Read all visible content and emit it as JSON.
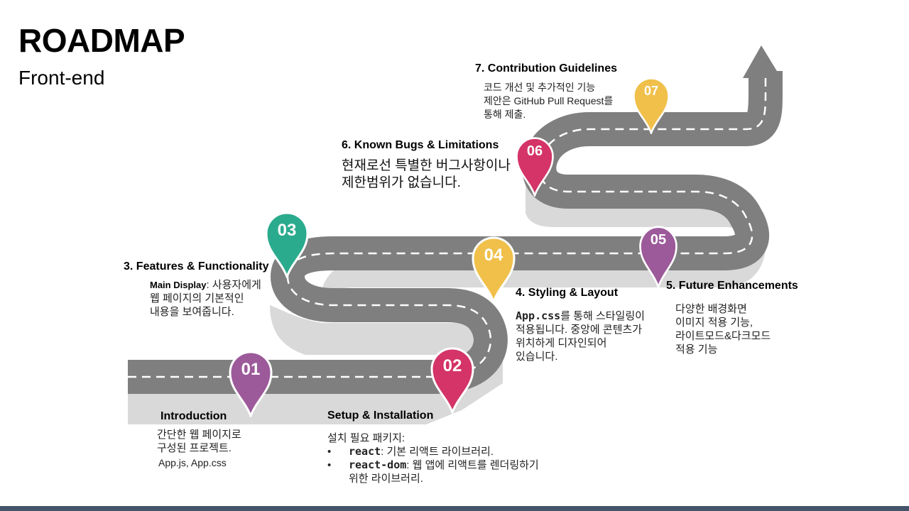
{
  "title": "ROADMAP",
  "subtitle": "Front-end",
  "colors": {
    "purple": "#9c5a9a",
    "pink": "#d43468",
    "teal": "#2bab8e",
    "yellow": "#f0c04a",
    "road": "#7f7f7f",
    "road_shadow": "#d9d9d9",
    "footer": "#44546a"
  },
  "milestones": [
    {
      "num": "01",
      "heading": "Introduction",
      "lines": [
        "간단한 웹 페이지로",
        "구성된 프로젝트."
      ],
      "files": "App.js, App.css"
    },
    {
      "num": "02",
      "heading": "Setup & Installation",
      "intro": "설치 필요 패키지:",
      "packages": [
        {
          "name": "react",
          "desc": ": 기본 리액트 라이브러리."
        },
        {
          "name": "react-dom",
          "desc": ": 웹 앱에 리액트를 렌더링하기",
          "desc2": "위한 라이브러리."
        }
      ]
    },
    {
      "num": "03",
      "heading": "3. Features & Functionality",
      "label": "Main Display",
      "desc": ": 사용자에게",
      "lines": [
        "웹 페이지의 기본적인",
        "내용을 보여줍니다."
      ]
    },
    {
      "num": "04",
      "heading": "4. Styling & Layout",
      "file": "App.css",
      "desc": "를 통해 스타일링이",
      "lines": [
        "적용됩니다. 중앙에 콘텐츠가",
        "위치하게 디자인되어",
        "있습니다."
      ]
    },
    {
      "num": "05",
      "heading": "5. Future Enhancements",
      "lines": [
        "다양한 배경화면",
        "이미지 적용 기능,",
        "라이트모드&다크모드",
        "적용 기능"
      ]
    },
    {
      "num": "06",
      "heading": "6. Known Bugs & Limitations",
      "lines": [
        "현재로선 특별한 버그사항이나",
        "제한범위가 없습니다."
      ]
    },
    {
      "num": "07",
      "heading": "7. Contribution Guidelines",
      "lines": [
        "코드 개선 및 추가적인 기능",
        "제안은 GitHub Pull Request를",
        "통해 제출."
      ]
    }
  ]
}
